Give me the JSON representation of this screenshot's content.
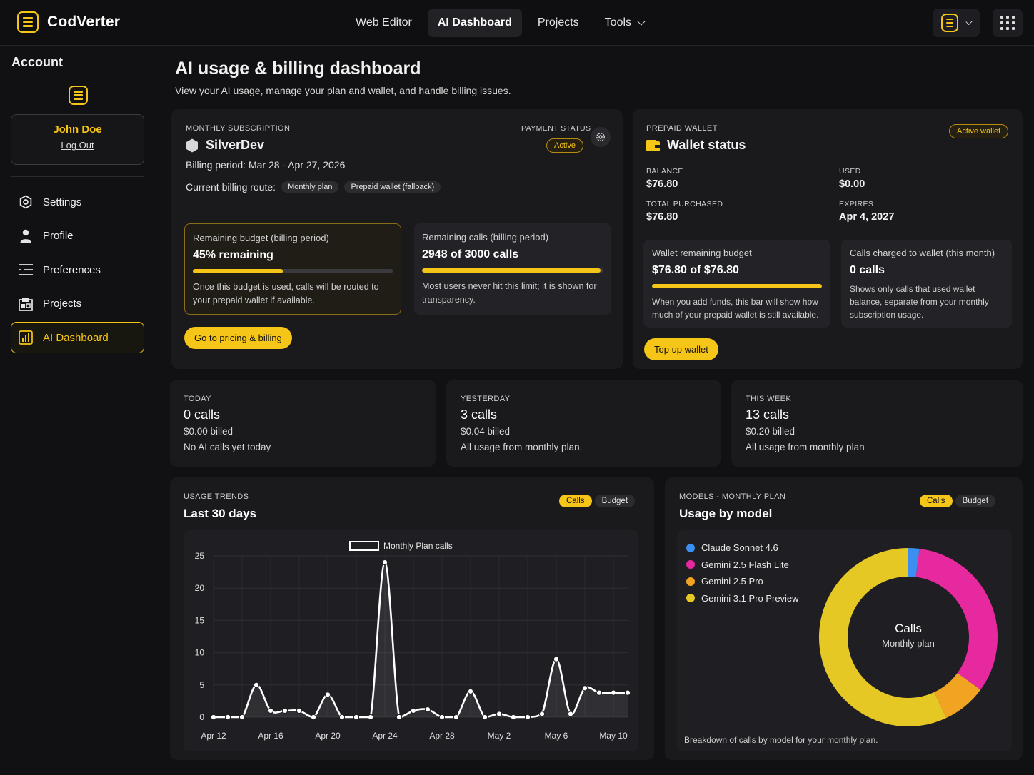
{
  "app": {
    "name": "CodVerter"
  },
  "nav": {
    "items": [
      {
        "label": "Web Editor"
      },
      {
        "label": "AI Dashboard"
      },
      {
        "label": "Projects"
      },
      {
        "label": "Tools"
      }
    ]
  },
  "sidebar": {
    "title": "Account",
    "user_name": "John Doe",
    "logout": "Log Out",
    "items": [
      {
        "label": "Settings",
        "icon": "gear-icon"
      },
      {
        "label": "Profile",
        "icon": "person-icon"
      },
      {
        "label": "Preferences",
        "icon": "sliders-icon"
      },
      {
        "label": "Projects",
        "icon": "projects-icon"
      },
      {
        "label": "AI Dashboard",
        "icon": "chart-icon"
      }
    ]
  },
  "page": {
    "title": "AI usage & billing dashboard",
    "subtitle": "View your AI usage, manage your plan and wallet, and handle billing issues."
  },
  "subscription": {
    "section_label": "MONTHLY SUBSCRIPTION",
    "plan_name": "SilverDev",
    "billing_period": "Billing period: Mar 28 - Apr 27, 2026",
    "route_label": "Current billing route:",
    "route_primary": "Monthly plan",
    "route_fallback": "Prepaid wallet (fallback)",
    "payment_status_label": "PAYMENT STATUS",
    "payment_status": "Active",
    "budget": {
      "label": "Remaining budget (billing period)",
      "value": "45% remaining",
      "fraction": 0.45,
      "note": "Once this budget is used, calls will be routed to your prepaid wallet if available."
    },
    "calls": {
      "label": "Remaining calls (billing period)",
      "value": "2948 of 3000 calls",
      "fraction": 0.983,
      "note": "Most users never hit this limit; it is shown for transparency."
    },
    "button": "Go to pricing & billing"
  },
  "wallet": {
    "section_label": "PREPAID WALLET",
    "title": "Wallet status",
    "badge": "Active wallet",
    "balance_label": "BALANCE",
    "balance": "$76.80",
    "used_label": "USED",
    "used": "$0.00",
    "total_label": "TOTAL PURCHASED",
    "total": "$76.80",
    "expires_label": "EXPIRES",
    "expires": "Apr 4, 2027",
    "remaining": {
      "label": "Wallet remaining budget",
      "value": "$76.80 of $76.80",
      "fraction": 1.0,
      "note": "When you add funds, this bar will show how much of your prepaid wallet is still available."
    },
    "charged": {
      "label": "Calls charged to wallet (this month)",
      "value": "0 calls",
      "note": "Shows only calls that used wallet balance, separate from your monthly subscription usage."
    },
    "button": "Top up wallet"
  },
  "stats": [
    {
      "label": "TODAY",
      "value": "0 calls",
      "billed": "$0.00 billed",
      "note": "No AI calls yet today"
    },
    {
      "label": "YESTERDAY",
      "value": "3 calls",
      "billed": "$0.04 billed",
      "note": "All usage from monthly plan."
    },
    {
      "label": "THIS WEEK",
      "value": "13 calls",
      "billed": "$0.20 billed",
      "note": "All usage from monthly plan"
    }
  ],
  "trends": {
    "section_label": "USAGE TRENDS",
    "title": "Last 30 days",
    "toggle_on": "Calls",
    "toggle_off": "Budget"
  },
  "models": {
    "section_label": "MODELS - MONTHLY PLAN",
    "title": "Usage by model",
    "toggle_on": "Calls",
    "toggle_off": "Budget",
    "center_title": "Calls",
    "center_sub": "Monthly plan",
    "footer": "Breakdown of calls by model for your monthly plan."
  },
  "chart_data": [
    {
      "type": "line",
      "legend": "Monthly Plan calls",
      "x_tick_labels": [
        "Apr 12",
        "Apr 16",
        "Apr 20",
        "Apr 24",
        "Apr 28",
        "May 2",
        "May 6",
        "May 10"
      ],
      "y_ticks": [
        0,
        5,
        10,
        15,
        20,
        25
      ],
      "ylim": [
        0,
        25
      ],
      "series": [
        {
          "name": "Monthly Plan calls",
          "x": [
            "Apr 12",
            "Apr 13",
            "Apr 14",
            "Apr 15",
            "Apr 16",
            "Apr 17",
            "Apr 18",
            "Apr 19",
            "Apr 20",
            "Apr 21",
            "Apr 22",
            "Apr 23",
            "Apr 24",
            "Apr 25",
            "Apr 26",
            "Apr 27",
            "Apr 28",
            "Apr 29",
            "Apr 30",
            "May 1",
            "May 2",
            "May 3",
            "May 4",
            "May 5",
            "May 6",
            "May 7",
            "May 8",
            "May 9",
            "May 10",
            "May 11"
          ],
          "values": [
            0,
            0,
            0,
            5,
            1,
            1,
            1,
            0,
            3.5,
            0,
            0,
            0,
            24,
            0,
            1,
            1.2,
            0,
            0,
            4,
            0,
            0.5,
            0,
            0,
            0.5,
            9,
            0.5,
            4.5,
            3.8,
            3.8,
            3.8
          ],
          "color": "#ffffff"
        }
      ]
    },
    {
      "type": "pie",
      "slices": [
        {
          "label": "Claude Sonnet 4.6",
          "value": 2,
          "color": "#3b8ff0"
        },
        {
          "label": "Gemini 2.5 Flash Lite",
          "value": 33,
          "color": "#e6299e"
        },
        {
          "label": "Gemini 2.5 Pro",
          "value": 8,
          "color": "#f0a422"
        },
        {
          "label": "Gemini 3.1 Pro Preview",
          "value": 57,
          "color": "#e6c825"
        }
      ]
    }
  ]
}
